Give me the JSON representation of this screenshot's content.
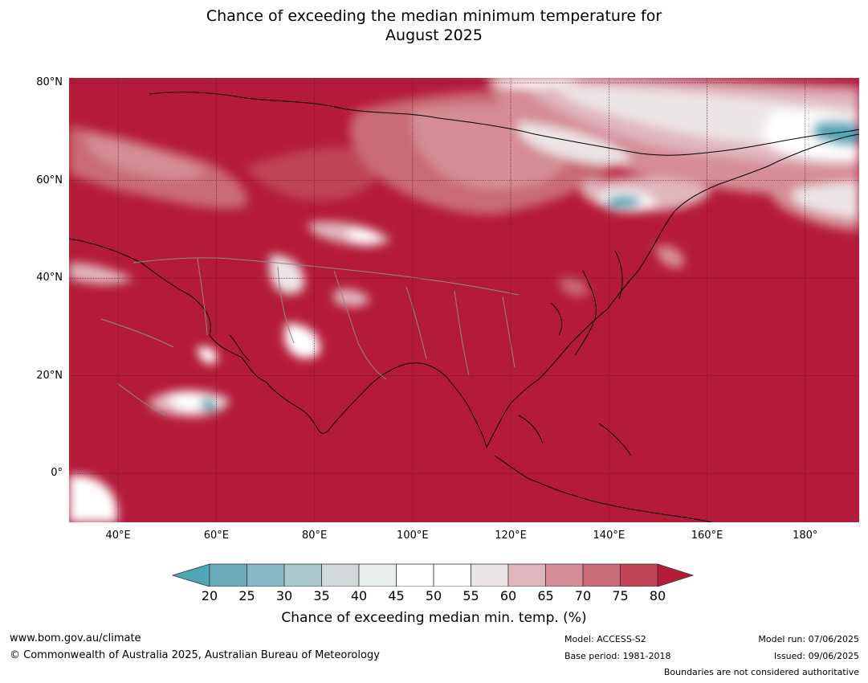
{
  "title": {
    "line1": "Chance of exceeding the median minimum temperature for",
    "line2": "August 2025"
  },
  "map": {
    "lat_labels": [
      "80°N",
      "60°N",
      "40°N",
      "20°N",
      "0°"
    ],
    "lon_labels": [
      "40°E",
      "60°E",
      "80°E",
      "100°E",
      "120°E",
      "140°E",
      "160°E",
      "180°"
    ],
    "lat_values": [
      80,
      60,
      40,
      20,
      0
    ],
    "lon_values": [
      40,
      60,
      80,
      100,
      120,
      140,
      160,
      180
    ],
    "lon_range": [
      30,
      191
    ],
    "lat_range": [
      -10,
      81
    ],
    "base_color": "#b41b3a"
  },
  "colorbar": {
    "ticks": [
      "20",
      "25",
      "30",
      "35",
      "40",
      "45",
      "50",
      "55",
      "60",
      "65",
      "70",
      "75",
      "80"
    ],
    "colors": [
      "#6aabba",
      "#88b8c3",
      "#a9c8cc",
      "#d2d9da",
      "#e9eeef",
      "#ffffff",
      "#ffffff",
      "#ece5e6",
      "#e0b6bd",
      "#d58d97",
      "#c96b77",
      "#c04453"
    ],
    "under_color": "#4fa6b6",
    "over_color": "#b41b3a",
    "label": "Chance of exceeding median min. temp. (%)"
  },
  "footer": {
    "website": "www.bom.gov.au/climate",
    "copyright": "© Commonwealth of Australia 2025, Australian Bureau of Meteorology",
    "model": "Model: ACCESS-S2",
    "base_period": "Base period: 1981-2018",
    "model_run": "Model run: 07/06/2025",
    "issued": "Issued: 09/06/2025",
    "boundaries": "Boundaries are not considered authoritative"
  }
}
